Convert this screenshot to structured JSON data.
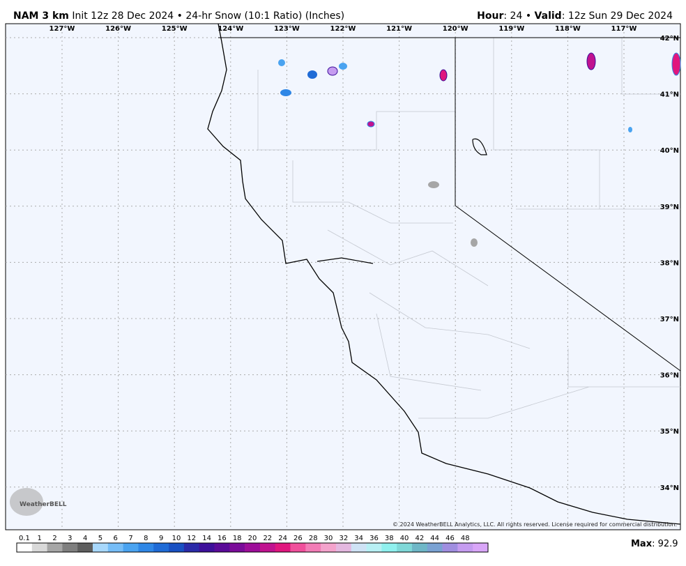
{
  "header": {
    "model": "NAM 3 km",
    "description": "Init 12z 28 Dec 2024 • 24-hr Snow (10:1 Ratio) (Inches)",
    "hour_label": "Hour",
    "hour_value": ": 24 •",
    "valid_label": "Valid",
    "valid_value": ": 12z Sun 29 Dec 2024"
  },
  "map": {
    "longitude_labels": [
      "127°W",
      "126°W",
      "125°W",
      "124°W",
      "123°W",
      "122°W",
      "121°W",
      "120°W",
      "119°W",
      "118°W",
      "117°W"
    ],
    "latitude_labels": [
      "42°N",
      "41°N",
      "40°N",
      "39°N",
      "38°N",
      "37°N",
      "36°N",
      "35°N",
      "34°N"
    ],
    "copyright": "© 2024 WeatherBELL Analytics, LLC. All rights reserved. License required for commercial distribution.",
    "logo": "WeatherBELL"
  },
  "colorbar": {
    "labels": [
      "0.1",
      "1",
      "2",
      "3",
      "4",
      "5",
      "6",
      "7",
      "8",
      "9",
      "10",
      "12",
      "14",
      "16",
      "18",
      "20",
      "22",
      "24",
      "26",
      "28",
      "30",
      "32",
      "34",
      "36",
      "38",
      "40",
      "42",
      "44",
      "46",
      "48"
    ],
    "colors": [
      "#ffffff",
      "#d9d9d9",
      "#a6a6a6",
      "#7f7f7f",
      "#5e5e5e",
      "#a8d8fb",
      "#76bdf7",
      "#4aa3f0",
      "#2f87e6",
      "#1f6bd6",
      "#1850c2",
      "#2a2aa8",
      "#3d0f9a",
      "#5a0a98",
      "#7a0b99",
      "#9d0d99",
      "#c0128f",
      "#e0167e",
      "#f04f9b",
      "#f27cb6",
      "#f4a3cc",
      "#e4b8e0",
      "#cfe3f5",
      "#b8f0f4",
      "#8ff0ee",
      "#7fd8d8",
      "#6fb7c7",
      "#7aa2d3",
      "#a08ee0",
      "#c59cf0",
      "#d9a6f8"
    ]
  },
  "max": {
    "label": "Max",
    "value": ": 92.9"
  }
}
